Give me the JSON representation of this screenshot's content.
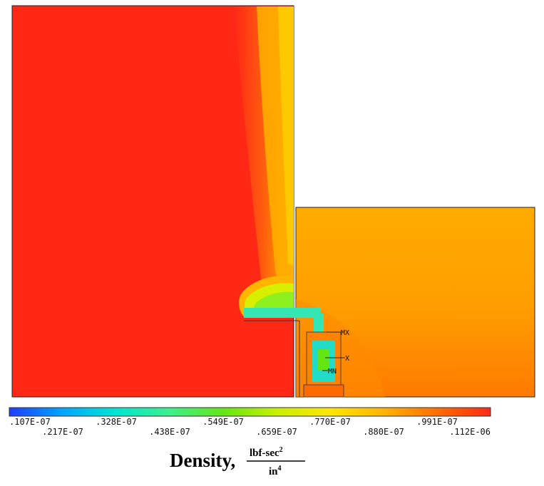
{
  "chart_data": {
    "type": "heatmap",
    "quantity": "Density",
    "units": {
      "numerator": "lbf-sec",
      "numerator_power": "2",
      "denominator": "in",
      "denominator_power": "4"
    },
    "title_label": "Density,",
    "colorbar": {
      "min": 1.07e-08,
      "max": 1.12e-07,
      "colors": [
        "#1e3cff",
        "#00a6ff",
        "#00e6d2",
        "#3cf08c",
        "#64e614",
        "#c8f000",
        "#ffe600",
        "#ffb400",
        "#ff6e00",
        "#ff2814"
      ],
      "tick_labels_upper": [
        ".107E-07",
        ".328E-07",
        ".549E-07",
        ".770E-07",
        ".991E-07"
      ],
      "tick_labels_lower": [
        ".217E-07",
        ".438E-07",
        ".659E-07",
        ".880E-07",
        ".112E-06"
      ]
    },
    "markers": [
      {
        "label": "MX",
        "meaning": "maximum"
      },
      {
        "label": "X",
        "meaning": ""
      },
      {
        "label": "MN",
        "meaning": "minimum"
      }
    ],
    "regions": [
      {
        "name": "left-chamber",
        "density": 1.12e-07,
        "color": "#ff2814"
      },
      {
        "name": "right-chamber",
        "density": 1e-07,
        "color": "#ffa600"
      },
      {
        "name": "gap-channel",
        "density": 3.5e-08,
        "color": "#33e6b4"
      }
    ]
  }
}
